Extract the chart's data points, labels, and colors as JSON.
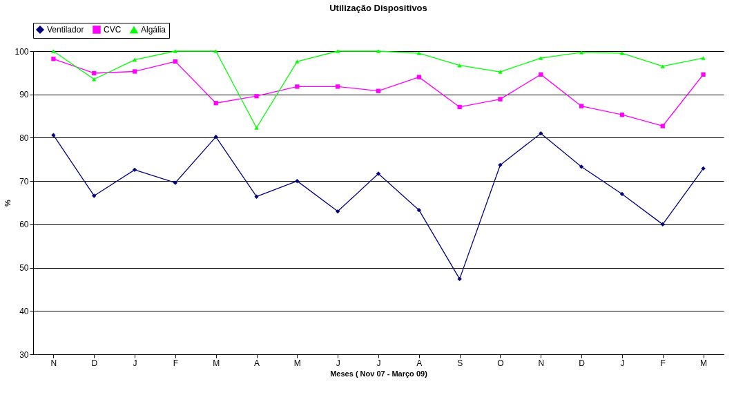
{
  "chart_data": {
    "type": "line",
    "title": "Utilização Dispositivos",
    "xlabel": "Meses ( Nov 07 - Março 09)",
    "ylabel": "%",
    "categories": [
      "N",
      "D",
      "J",
      "F",
      "M",
      "A",
      "M",
      "J",
      "J",
      "A",
      "S",
      "O",
      "N",
      "D",
      "J",
      "F",
      "M"
    ],
    "series": [
      {
        "name": "Ventilador",
        "color": "#000080",
        "marker": "diamond",
        "values": [
          80.6,
          66.6,
          72.6,
          69.6,
          80.2,
          66.4,
          70.0,
          63.0,
          71.7,
          63.3,
          47.4,
          73.7,
          81.0,
          73.3,
          67.0,
          60.0,
          72.9
        ]
      },
      {
        "name": "CVC",
        "color": "#ff00ff",
        "marker": "square",
        "values": [
          98.2,
          94.9,
          95.3,
          97.6,
          88.0,
          89.6,
          91.8,
          91.8,
          90.8,
          94.0,
          87.1,
          88.9,
          94.6,
          87.3,
          85.3,
          82.7,
          94.6
        ]
      },
      {
        "name": "Algália",
        "color": "#00ff00",
        "marker": "triangle",
        "values": [
          100,
          93.5,
          98.0,
          100,
          100,
          82.3,
          97.6,
          100,
          100,
          99.5,
          96.7,
          95.2,
          98.4,
          99.7,
          99.5,
          96.5,
          98.4
        ]
      }
    ],
    "ylim": [
      30,
      100
    ],
    "yticks": [
      30,
      40,
      50,
      60,
      70,
      80,
      90,
      100
    ],
    "grid": "y",
    "legend": "top"
  }
}
